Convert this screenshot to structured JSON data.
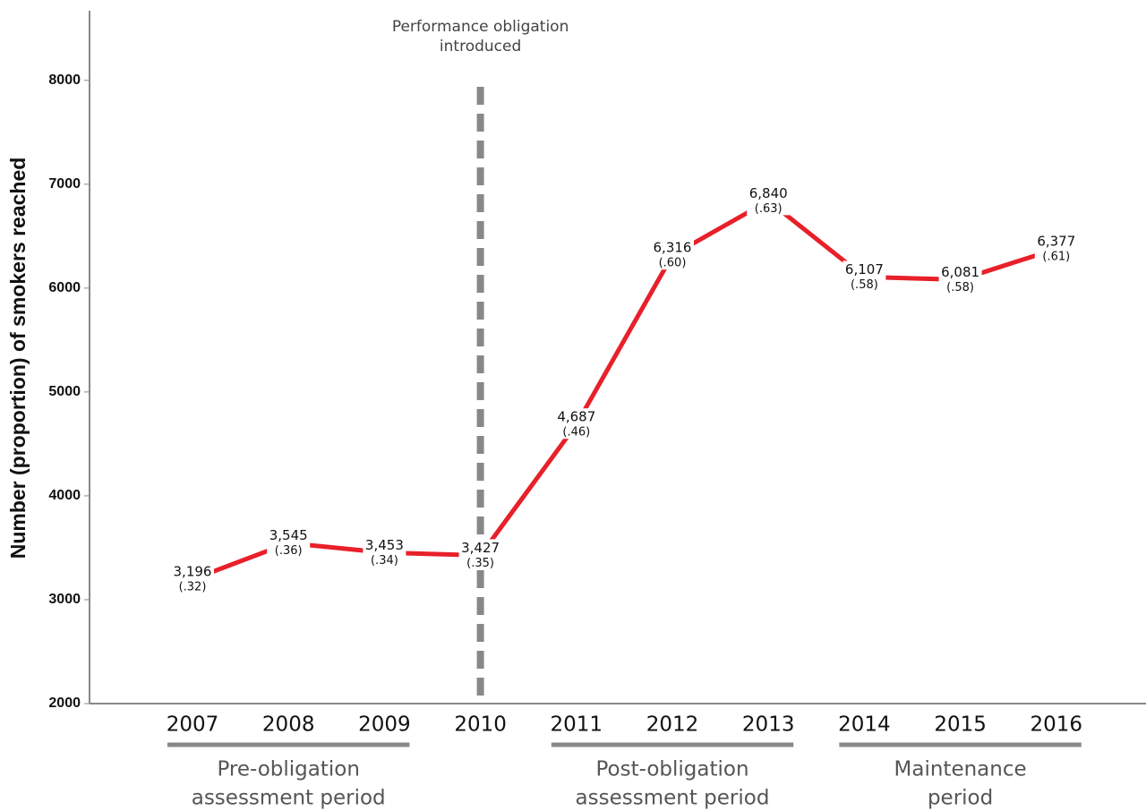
{
  "chart_data": {
    "type": "line",
    "y_label": "Number (proportion) of smokers reached",
    "categories": [
      "2007",
      "2008",
      "2009",
      "2010",
      "2011",
      "2012",
      "2013",
      "2014",
      "2015",
      "2016"
    ],
    "values": [
      3196,
      3545,
      3453,
      3427,
      4687,
      6316,
      6840,
      6107,
      6081,
      6377
    ],
    "value_labels": [
      "3,196",
      "3,545",
      "3,453",
      "3,427",
      "4,687",
      "6,316",
      "6,840",
      "6,107",
      "6,081",
      "6,377"
    ],
    "proportions": [
      0.32,
      0.36,
      0.34,
      0.35,
      0.46,
      0.6,
      0.63,
      0.58,
      0.58,
      0.61
    ],
    "proportion_labels": [
      "(.32)",
      "(.36)",
      "(.34)",
      "(.35)",
      "(.46)",
      "(.60)",
      "(.63)",
      "(.58)",
      "(.58)",
      "(.61)"
    ],
    "color": "#e8202a",
    "ylim": [
      2000,
      8670
    ],
    "yticks": [
      2000,
      3000,
      4000,
      5000,
      6000,
      7000,
      8000
    ],
    "annotation": {
      "lines": [
        "Performance obligation",
        "introduced"
      ],
      "at": "2010",
      "color": "#888888"
    },
    "periods": [
      {
        "lines": [
          "Pre-obligation",
          "assessment period"
        ],
        "span": [
          "2007",
          "2009"
        ]
      },
      {
        "lines": [
          "Post-obligation",
          "assessment period"
        ],
        "span": [
          "2011",
          "2013"
        ]
      },
      {
        "lines": [
          "Maintenance",
          "period"
        ],
        "span": [
          "2014",
          "2016"
        ]
      }
    ]
  }
}
